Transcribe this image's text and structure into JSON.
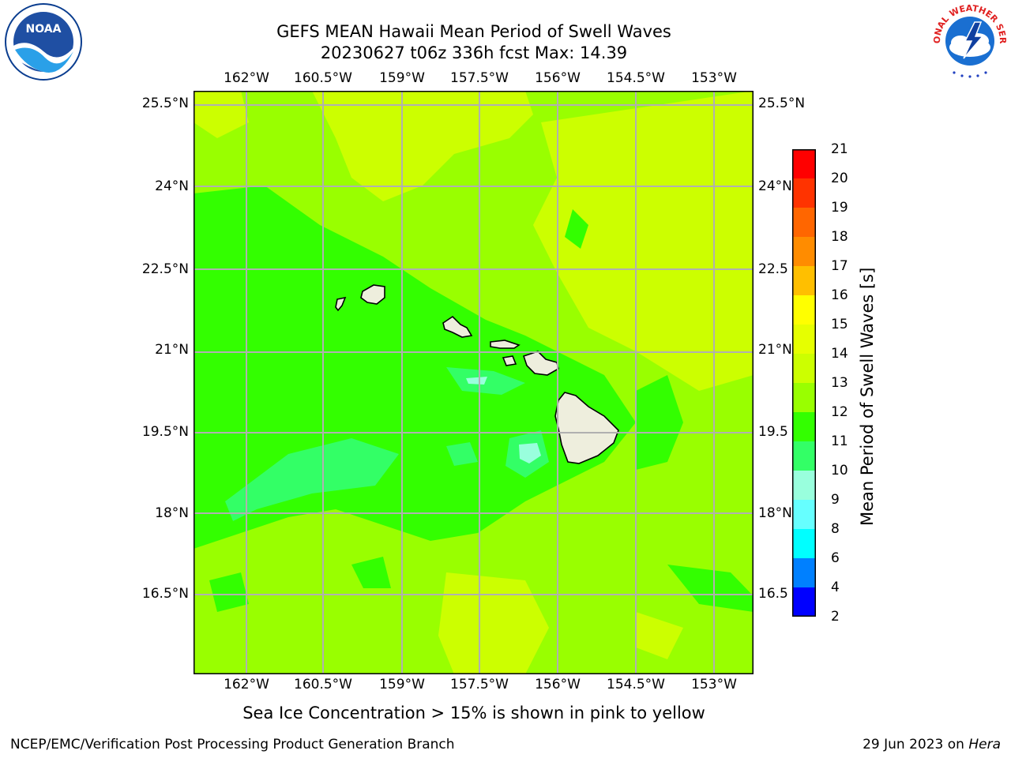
{
  "header": {
    "line1": "GEFS MEAN Hawaii Mean Period of Swell Waves",
    "line2": "20230627 t06z 336h fcst   Max: 14.39"
  },
  "logos": {
    "noaa_text": "NOAA",
    "nws_text": "NATIONAL WEATHER SERVICE",
    "noaa_ring_text": "NATIONAL OCEANIC AND ATMOSPHERIC ADMINISTRATION · U.S. DEPARTMENT OF COMMERCE"
  },
  "axes": {
    "lon_labels": [
      "162°W",
      "160.5°W",
      "159°W",
      "157.5°W",
      "156°W",
      "154.5°W",
      "153°W"
    ],
    "lat_labels_left": [
      "25.5°N",
      "24°N",
      "22.5°N",
      "21°N",
      "19.5°N",
      "18°N",
      "16.5°N"
    ],
    "lat_labels_right": [
      "25.5°N",
      "24°N",
      "22.5",
      "21°N",
      "19.5",
      "18°N",
      "16.5"
    ]
  },
  "colorbar": {
    "title": "Mean Period of Swell Waves [s]",
    "ticks": [
      "21",
      "20",
      "19",
      "18",
      "17",
      "16",
      "15",
      "14",
      "13",
      "12",
      "11",
      "10",
      "9",
      "8",
      "6",
      "4",
      "2"
    ],
    "colors_top_to_bottom": [
      "#ff0000",
      "#ff3300",
      "#ff6600",
      "#ff8c00",
      "#ffbf00",
      "#ffff00",
      "#e6ff00",
      "#ccff00",
      "#99ff00",
      "#33ff00",
      "#33ff66",
      "#99ffdd",
      "#66ffff",
      "#00ffff",
      "#0080ff",
      "#0000ff"
    ]
  },
  "map_colors": {
    "base": "#99ff00",
    "band_12": "#33ff00",
    "band_11": "#33ff66",
    "band_14": "#ccff00",
    "band_10": "#99ffdd",
    "land": "#eeeedd"
  },
  "caption": "Sea Ice Concentration > 15% is shown in pink to yellow",
  "footer": {
    "left": "NCEP/EMC/Verification Post Processing Product Generation Branch",
    "date": "29 Jun 2023 on ",
    "host": "Hera"
  }
}
